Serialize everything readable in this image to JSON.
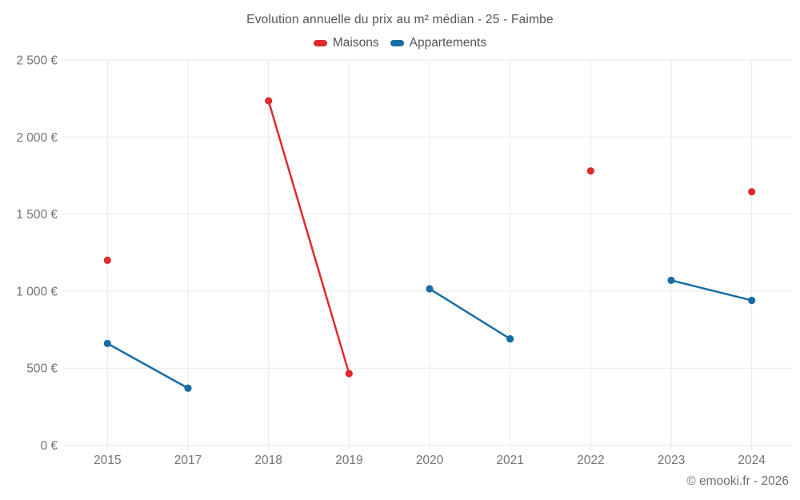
{
  "title": "Evolution annuelle du prix au m² médian - 25 - Faimbe",
  "footer": "© emooki.fr - 2026",
  "legend": [
    {
      "label": "Maisons",
      "color": "#df2a2e"
    },
    {
      "label": "Appartements",
      "color": "#176da4"
    }
  ],
  "chart_data": {
    "type": "line",
    "title": "Evolution annuelle du prix au m² médian - 25 - Faimbe",
    "categories": [
      "2015",
      "2017",
      "2018",
      "2019",
      "2020",
      "2021",
      "2022",
      "2023",
      "2024"
    ],
    "series": [
      {
        "name": "Maisons",
        "color": "#df2a2e",
        "values": [
          1200,
          null,
          2235,
          465,
          null,
          null,
          1780,
          null,
          1645
        ]
      },
      {
        "name": "Appartements",
        "color": "#176da4",
        "values": [
          660,
          370,
          null,
          null,
          1015,
          690,
          null,
          1070,
          940
        ]
      }
    ],
    "xlabel": "",
    "ylabel": "",
    "ylim": [
      0,
      2500
    ],
    "yticks": [
      0,
      500,
      1000,
      1500,
      2000,
      2500
    ],
    "ytick_suffix": " €",
    "grid": true,
    "legend_position": "top",
    "note": "lines only join consecutive years where both values exist"
  }
}
